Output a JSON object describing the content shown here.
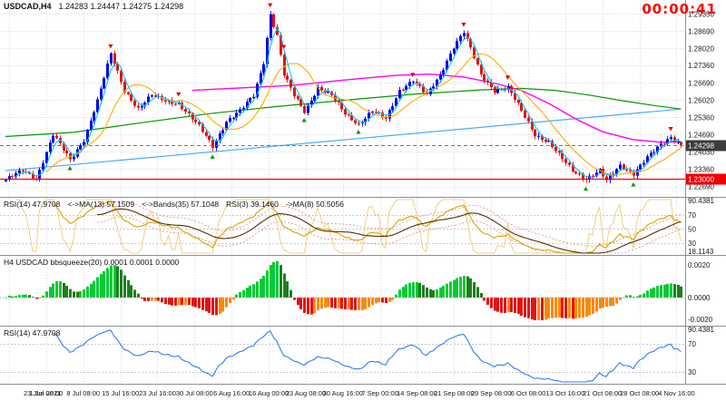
{
  "header": {
    "symbol": "USDCAD,H4",
    "ohlc": "1.24283 1.24447 1.24275 1.24298",
    "timer": "00:00:41"
  },
  "chart_data": {
    "type": "candlestick-with-indicators",
    "symbol": "USDCAD",
    "timeframe": "H4",
    "main": {
      "price_labels": [
        "1.29350",
        "1.28690",
        "1.28020",
        "1.27360",
        "1.26690",
        "1.26020",
        "1.25360",
        "1.24690",
        "1.24030",
        "1.23360",
        "1.22690"
      ],
      "scale": {
        "min": 1.225,
        "max": 1.2975
      },
      "current_price": 1.24298,
      "current_price_label": "1.24298",
      "hline": {
        "value": 1.23,
        "label": "1.23000"
      },
      "candles": {
        "count": 200,
        "noise": 0.0011,
        "wick": 0.001,
        "anchors": [
          [
            0,
            1.2295
          ],
          [
            5,
            1.233
          ],
          [
            9,
            1.23
          ],
          [
            14,
            1.247
          ],
          [
            19,
            1.237
          ],
          [
            23,
            1.245
          ],
          [
            27,
            1.26
          ],
          [
            31,
            1.278
          ],
          [
            35,
            1.264
          ],
          [
            39,
            1.257
          ],
          [
            43,
            1.262
          ],
          [
            47,
            1.26
          ],
          [
            51,
            1.259
          ],
          [
            57,
            1.25
          ],
          [
            61,
            1.2425
          ],
          [
            65,
            1.252
          ],
          [
            69,
            1.256
          ],
          [
            73,
            1.262
          ],
          [
            76,
            1.275
          ],
          [
            78,
            1.2935
          ],
          [
            80,
            1.285
          ],
          [
            82,
            1.27
          ],
          [
            85,
            1.262
          ],
          [
            88,
            1.256
          ],
          [
            92,
            1.265
          ],
          [
            96,
            1.262
          ],
          [
            100,
            1.255
          ],
          [
            104,
            1.251
          ],
          [
            108,
            1.256
          ],
          [
            112,
            1.253
          ],
          [
            116,
            1.264
          ],
          [
            120,
            1.268
          ],
          [
            124,
            1.262
          ],
          [
            128,
            1.27
          ],
          [
            132,
            1.281
          ],
          [
            135,
            1.2865
          ],
          [
            137,
            1.28
          ],
          [
            140,
            1.27
          ],
          [
            144,
            1.264
          ],
          [
            148,
            1.265
          ],
          [
            152,
            1.256
          ],
          [
            156,
            1.247
          ],
          [
            160,
            1.244
          ],
          [
            163,
            1.239
          ],
          [
            167,
            1.233
          ],
          [
            171,
            1.23
          ],
          [
            175,
            1.233
          ],
          [
            177,
            1.229
          ],
          [
            181,
            1.235
          ],
          [
            185,
            1.232
          ],
          [
            189,
            1.238
          ],
          [
            193,
            1.243
          ],
          [
            196,
            1.246
          ],
          [
            199,
            1.24298
          ]
        ]
      },
      "overlays": {
        "ma_fast_period": 4,
        "ma_med_period": 13,
        "ma_slow_path": [
          [
            55,
            1.264
          ],
          [
            70,
            1.265
          ],
          [
            85,
            1.266
          ],
          [
            100,
            1.268
          ],
          [
            115,
            1.2698
          ],
          [
            125,
            1.2703
          ],
          [
            135,
            1.2692
          ],
          [
            145,
            1.2665
          ],
          [
            152,
            1.264
          ],
          [
            160,
            1.259
          ],
          [
            168,
            1.253
          ],
          [
            176,
            1.248
          ],
          [
            185,
            1.245
          ],
          [
            193,
            1.244
          ],
          [
            199,
            1.2442
          ]
        ],
        "ma_long_path": [
          [
            0,
            1.2462
          ],
          [
            20,
            1.2478
          ],
          [
            40,
            1.2515
          ],
          [
            60,
            1.255
          ],
          [
            80,
            1.2578
          ],
          [
            100,
            1.2602
          ],
          [
            120,
            1.2625
          ],
          [
            140,
            1.2642
          ],
          [
            152,
            1.2648
          ],
          [
            162,
            1.264
          ],
          [
            172,
            1.2622
          ],
          [
            182,
            1.26
          ],
          [
            192,
            1.258
          ],
          [
            199,
            1.2568
          ]
        ],
        "trendline": [
          [
            0,
            1.233
          ],
          [
            199,
            1.2568
          ]
        ]
      },
      "arrows": [
        {
          "i": 19,
          "d": "up"
        },
        {
          "i": 31,
          "d": "down"
        },
        {
          "i": 51,
          "d": "down"
        },
        {
          "i": 61,
          "d": "up"
        },
        {
          "i": 78,
          "d": "down"
        },
        {
          "i": 82,
          "d": "down"
        },
        {
          "i": 88,
          "d": "up"
        },
        {
          "i": 104,
          "d": "up"
        },
        {
          "i": 120,
          "d": "down"
        },
        {
          "i": 135,
          "d": "down"
        },
        {
          "i": 148,
          "d": "down"
        },
        {
          "i": 171,
          "d": "up"
        },
        {
          "i": 185,
          "d": "up"
        },
        {
          "i": 196,
          "d": "down"
        }
      ]
    },
    "rsi_panel": {
      "legend": [
        "RSI(14) 47.9708",
        "<->MA(13) 57.1509",
        "<->Bands(35) 57.1048",
        "RSI(3) 39.1460",
        "->MA(8) 50.5056"
      ],
      "range": {
        "min": 18.1143,
        "max": 90.4381
      },
      "levels": [
        70,
        50,
        30
      ],
      "labels": [
        {
          "v": 90.4381,
          "t": "90.4381"
        },
        {
          "v": 70,
          "t": "70"
        },
        {
          "v": 50,
          "t": "50"
        },
        {
          "v": 30,
          "t": "30"
        },
        {
          "v": 18.1143,
          "t": "18.1143"
        }
      ]
    },
    "squeeze_panel": {
      "legend": "H4 USDCAD bbsqueeze(20) 0.0001 0.0001 0.0000",
      "period": 20,
      "axis_labels": [
        "0.0020",
        "0.0000",
        "-0.0020"
      ]
    },
    "rsi2_panel": {
      "legend": "RSI(14) 47.9708",
      "period": 14,
      "range": {
        "min": 18.1143,
        "max": 90.4381
      },
      "levels": [
        70,
        30
      ],
      "labels": [
        {
          "v": 90.4381,
          "t": "90.4381"
        },
        {
          "v": 70,
          "t": "70"
        },
        {
          "v": 30,
          "t": "30"
        }
      ]
    },
    "dates": [
      "23 Jun 2021",
      "1 Jul 08:00",
      "8 Jul 08:00",
      "15 Jul 16:00",
      "23 Jul 16:00",
      "30 Jul 08:00",
      "6 Aug 16:00",
      "16 Aug 00:00",
      "23 Aug 08:00",
      "30 Aug 16:00",
      "7 Sep 00:00",
      "14 Sep 08:00",
      "21 Sep 08:00",
      "29 Sep 08:00",
      "6 Oct 08:00",
      "13 Oct 16:00",
      "21 Oct 08:00",
      "28 Oct 08:00",
      "4 Nov 16:00"
    ]
  },
  "colors": {
    "up": "#0000ee",
    "down": "#e81010",
    "ma_fast": "#00c8ff",
    "ma_med": "#ffaa00",
    "ma_slow": "#ff00ff",
    "ma_long": "#009900",
    "trendline": "#46aaff",
    "hline": "#ff0000",
    "rsi": "#d9a300",
    "rsi_fast": "#f0c468",
    "rsi_ma": "#5a2d00",
    "rsi_bands": "#e08888",
    "squeeze_up_rise": "#00cc33",
    "squeeze_up_fall": "#1e7d1e",
    "squeeze_down_fall": "#e81010",
    "squeeze_down_rise": "#ff8800",
    "rsi2": "#2f7bff",
    "timer": "#ff0000",
    "grid": "#d9d9d9"
  }
}
